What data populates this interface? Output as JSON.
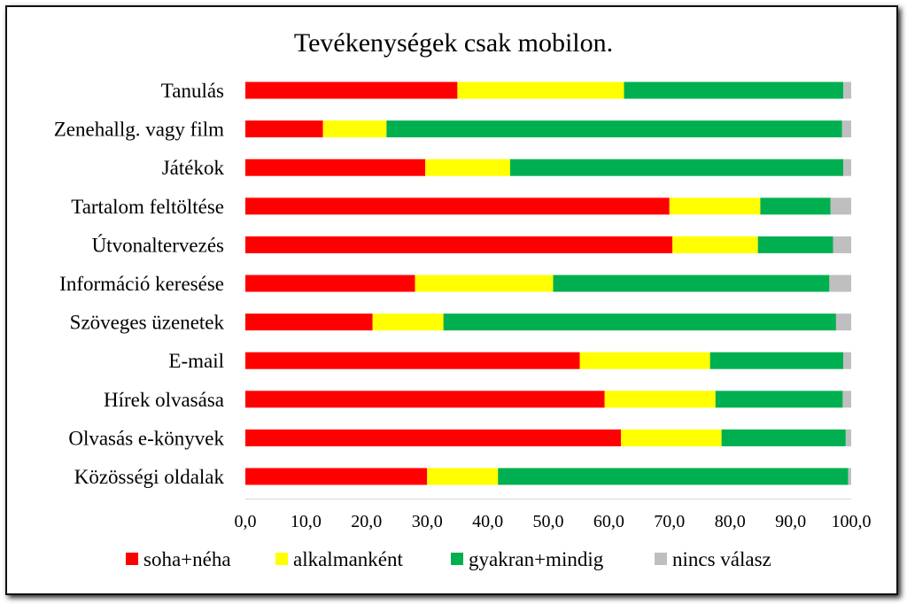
{
  "chart_data": {
    "type": "bar",
    "orientation": "horizontal",
    "stacked": true,
    "title": "Tevékenységek csak mobilon.",
    "xlim": [
      0,
      100
    ],
    "x_ticks": [
      "0,0",
      "10,0",
      "20,0",
      "30,0",
      "40,0",
      "50,0",
      "60,0",
      "70,0",
      "80,0",
      "90,0",
      "100,0"
    ],
    "grid": false,
    "legend_position": "bottom",
    "categories": [
      "Tanulás",
      "Zenehallg. vagy film",
      "Játékok",
      "Tartalom feltöltése",
      "Útvonaltervezés",
      "Információ keresése",
      "Szöveges üzenetek",
      "E-mail",
      "Hírek olvasása",
      "Olvasás  e-könyvek",
      "Közösségi oldalak"
    ],
    "series": [
      {
        "name": "soha+néha",
        "color": "#ff0000",
        "values": [
          35.0,
          12.8,
          29.7,
          70.0,
          70.5,
          28.0,
          21.0,
          55.2,
          59.3,
          62.0,
          30.0
        ]
      },
      {
        "name": "alkalmanként",
        "color": "#ffff00",
        "values": [
          27.5,
          10.5,
          14.0,
          15.0,
          14.1,
          22.8,
          11.7,
          21.5,
          18.3,
          16.6,
          11.7
        ]
      },
      {
        "name": "gyakran+mindig",
        "color": "#00b050",
        "values": [
          36.2,
          75.2,
          55.0,
          11.6,
          12.4,
          45.6,
          64.8,
          22.0,
          21.0,
          20.5,
          57.8
        ]
      },
      {
        "name": "nincs válasz",
        "color": "#bfbfbf",
        "values": [
          1.3,
          1.5,
          1.3,
          3.4,
          3.0,
          3.6,
          2.5,
          1.3,
          1.4,
          0.9,
          0.5
        ]
      }
    ]
  }
}
